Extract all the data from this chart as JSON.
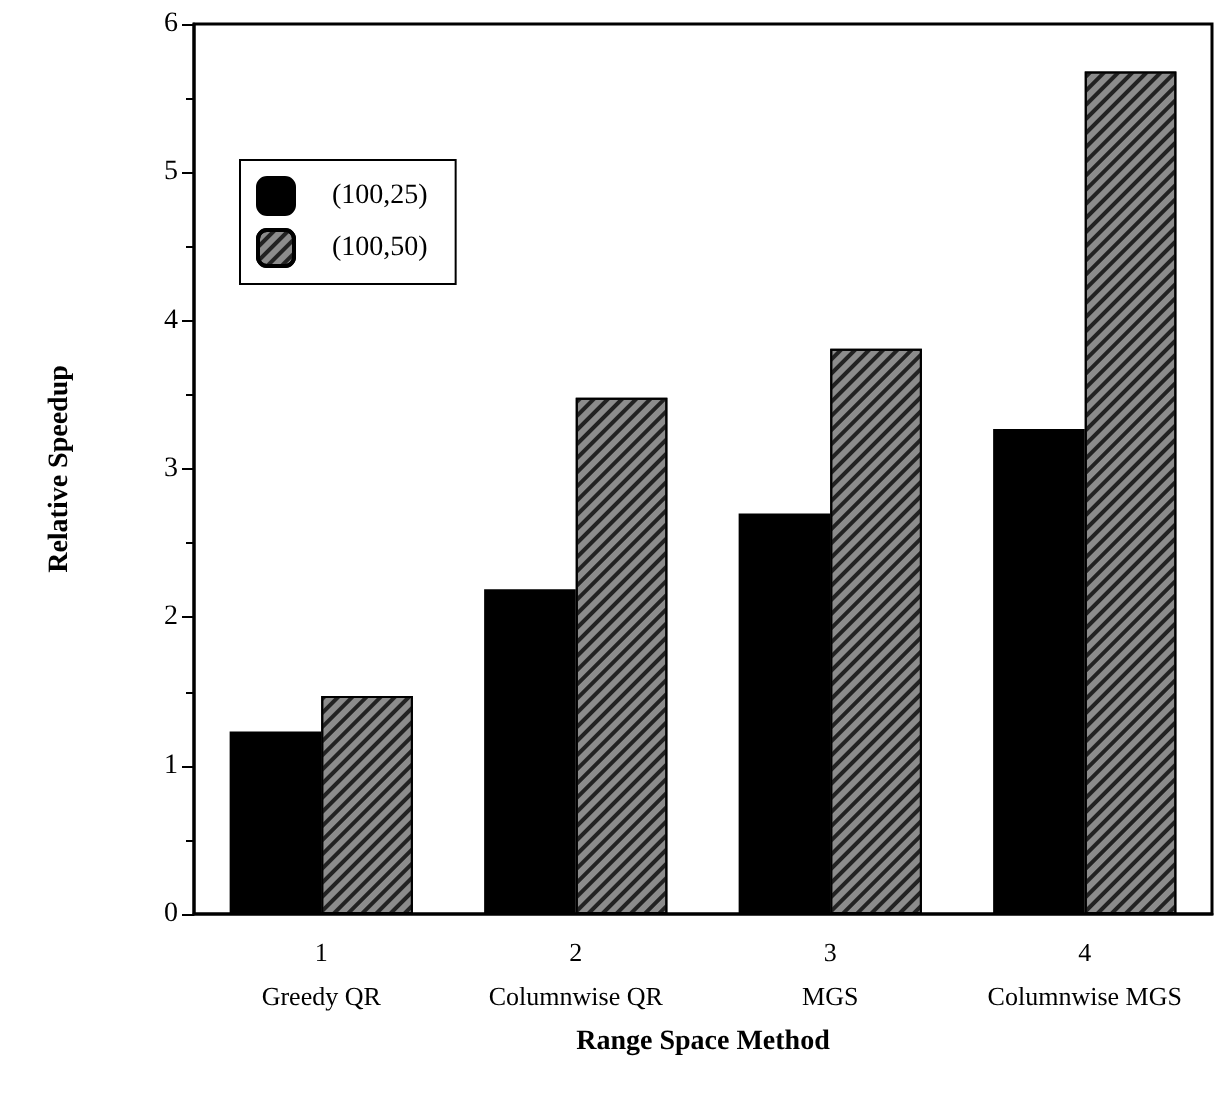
{
  "chart_data": {
    "type": "bar",
    "xlabel": "Range Space Method",
    "ylabel": "Relative Speedup",
    "categories": [
      "1\nGreedy QR",
      "2\nColumnwise QR",
      "3\nMGS",
      "4\nColumnwise MGS"
    ],
    "series": [
      {
        "name": "(100,25)",
        "color": "#000000",
        "values": [
          1.23,
          2.19,
          2.7,
          3.27
        ]
      },
      {
        "name": "(100,50)",
        "color": "#8c8c8c",
        "values": [
          1.47,
          3.48,
          3.81,
          5.68
        ]
      }
    ],
    "ylim": [
      0,
      6
    ],
    "yticks": [
      0,
      1,
      2,
      3,
      4,
      5,
      6
    ],
    "grid": false,
    "legend": "top left"
  }
}
